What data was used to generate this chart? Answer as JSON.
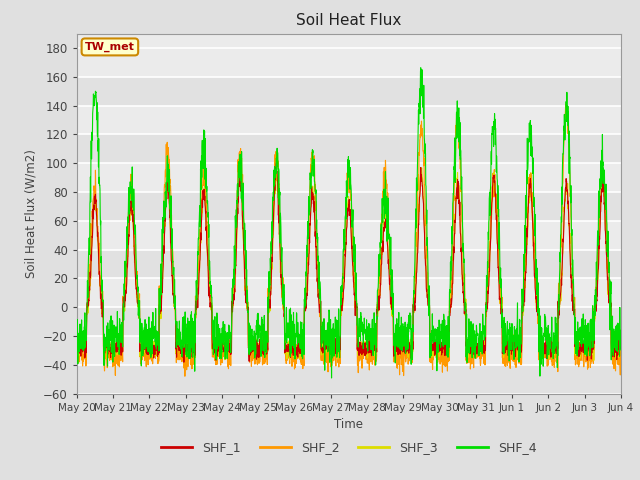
{
  "title": "Soil Heat Flux",
  "ylabel": "Soil Heat Flux (W/m2)",
  "xlabel": "Time",
  "ylim": [
    -60,
    190
  ],
  "yticks": [
    -60,
    -40,
    -20,
    0,
    20,
    40,
    60,
    80,
    100,
    120,
    140,
    160,
    180
  ],
  "n_days": 15,
  "colors": {
    "SHF_1": "#cc0000",
    "SHF_2": "#ff9900",
    "SHF_3": "#dddd00",
    "SHF_4": "#00dd00"
  },
  "line_width": 0.8,
  "background_color": "#e0e0e0",
  "plot_bg_color": "#ebebeb",
  "grid_color": "#ffffff",
  "annotation_text": "TW_met",
  "annotation_color": "#aa0000",
  "annotation_bg": "#ffffcc",
  "annotation_border": "#cc8800",
  "tick_labels": [
    "May 20",
    "May 21",
    "May 22",
    "May 23",
    "May 24",
    "May 25",
    "May 26",
    "May 27",
    "May 28",
    "May 29",
    "May 30",
    "May 31",
    "Jun 1",
    "Jun 2",
    "Jun 3",
    "Jun 4"
  ]
}
